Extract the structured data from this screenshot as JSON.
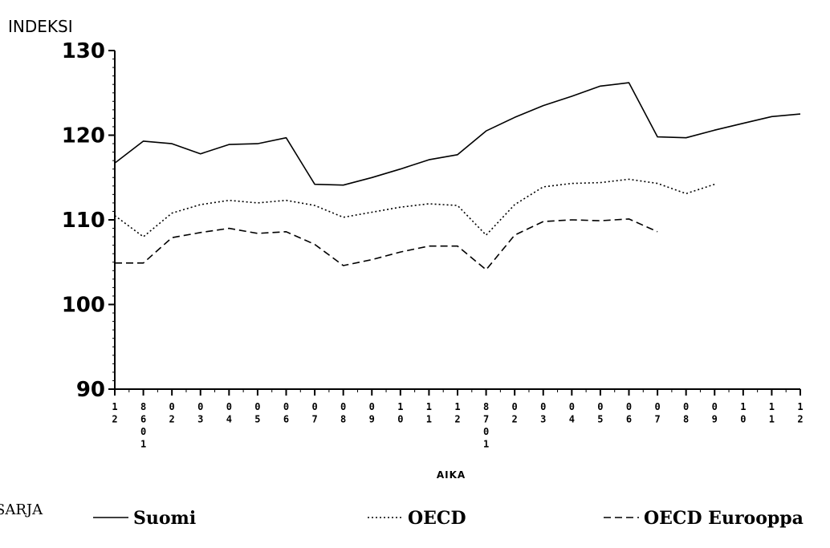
{
  "chart_data": {
    "type": "line",
    "ylabel": "INDEKSI",
    "xlabel": "AIKA",
    "ylim": [
      90,
      130
    ],
    "yticks": [
      90,
      100,
      110,
      120,
      130
    ],
    "x_tick_labels": [
      [
        "1",
        "2"
      ],
      [
        "8",
        "6",
        "0",
        "1"
      ],
      [
        "0",
        "2"
      ],
      [
        "0",
        "3"
      ],
      [
        "0",
        "4"
      ],
      [
        "0",
        "5"
      ],
      [
        "0",
        "6"
      ],
      [
        "0",
        "7"
      ],
      [
        "0",
        "8"
      ],
      [
        "0",
        "9"
      ],
      [
        "1",
        "0"
      ],
      [
        "1",
        "1"
      ],
      [
        "1",
        "2"
      ],
      [
        "8",
        "7",
        "0",
        "1"
      ],
      [
        "0",
        "2"
      ],
      [
        "0",
        "3"
      ],
      [
        "0",
        "4"
      ],
      [
        "0",
        "5"
      ],
      [
        "0",
        "6"
      ],
      [
        "0",
        "7"
      ],
      [
        "0",
        "8"
      ],
      [
        "0",
        "9"
      ],
      [
        "1",
        "0"
      ],
      [
        "1",
        "1"
      ],
      [
        "1",
        "2"
      ]
    ],
    "legend_title": "SARJA",
    "series": [
      {
        "name": "Suomi",
        "style": "solid",
        "values": [
          116.7,
          119.3,
          119.0,
          117.8,
          118.9,
          119.0,
          119.7,
          114.2,
          114.1,
          115.0,
          116.0,
          117.1,
          117.7,
          120.5,
          122.1,
          123.5,
          124.6,
          125.8,
          126.2,
          119.8,
          119.7,
          120.6,
          121.4,
          122.2,
          122.5
        ]
      },
      {
        "name": "OECD",
        "style": "dotted",
        "values": [
          110.5,
          108.0,
          110.8,
          111.8,
          112.3,
          112.0,
          112.3,
          111.7,
          110.3,
          110.9,
          111.5,
          111.9,
          111.7,
          108.2,
          111.8,
          113.9,
          114.3,
          114.4,
          114.8,
          114.3,
          113.1,
          114.2,
          null,
          null,
          null
        ]
      },
      {
        "name": "OECD Eurooppa",
        "style": "dashed",
        "values": [
          104.9,
          104.9,
          107.9,
          108.5,
          109.0,
          108.4,
          108.6,
          107.1,
          104.6,
          105.3,
          106.2,
          106.9,
          106.9,
          104.1,
          108.2,
          109.8,
          110.0,
          109.9,
          110.1,
          108.6,
          null,
          null,
          null,
          null,
          null
        ]
      }
    ]
  }
}
